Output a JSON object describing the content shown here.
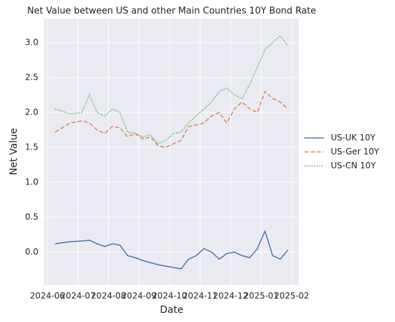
{
  "chart_data": {
    "type": "line",
    "title": "Net Value between US and other Main Countries 10Y Bond Rate",
    "xlabel": "Date",
    "ylabel": "Net Value",
    "x": [
      "2024-06",
      "2024-06",
      "2024-07",
      "2024-07",
      "2024-07",
      "2024-07",
      "2024-08",
      "2024-08",
      "2024-08",
      "2024-08",
      "2024-09",
      "2024-09",
      "2024-09",
      "2024-09",
      "2024-10",
      "2024-10",
      "2024-10",
      "2024-10",
      "2024-11",
      "2024-11",
      "2024-11",
      "2024-11",
      "2024-12",
      "2024-12",
      "2024-12",
      "2024-12",
      "2025-01",
      "2025-01",
      "2025-01",
      "2025-01"
    ],
    "series": [
      {
        "name": "US-UK 10Y",
        "color": "#4c72b0",
        "dash": "solid",
        "values": [
          0.12,
          0.15,
          0.16,
          0.17,
          0.12,
          0.08,
          0.12,
          0.1,
          -0.05,
          -0.08,
          -0.12,
          -0.15,
          -0.18,
          -0.2,
          -0.22,
          -0.24,
          -0.1,
          -0.05,
          0.05,
          0.0,
          -0.1,
          -0.02,
          0.0,
          -0.05,
          -0.08,
          0.05,
          0.3,
          -0.05,
          -0.1,
          0.03
        ]
      },
      {
        "name": "US-Ger 10Y",
        "color": "#dd8452",
        "dash": "dashed",
        "values": [
          1.72,
          1.85,
          1.88,
          1.85,
          1.75,
          1.7,
          1.8,
          1.78,
          1.65,
          1.7,
          1.62,
          1.65,
          1.52,
          1.5,
          1.55,
          1.6,
          1.8,
          1.82,
          1.85,
          1.95,
          2.0,
          1.85,
          2.05,
          2.15,
          2.05,
          2.0,
          2.3,
          2.2,
          2.15,
          2.05
        ]
      },
      {
        "name": "US-CN 10Y",
        "color": "#55a868",
        "dash": "dotted",
        "values": [
          2.05,
          1.98,
          2.0,
          2.25,
          2.0,
          1.95,
          2.05,
          2.0,
          1.72,
          1.7,
          1.65,
          1.68,
          1.55,
          1.6,
          1.7,
          1.72,
          1.85,
          1.95,
          2.05,
          2.15,
          2.3,
          2.35,
          2.25,
          2.2,
          2.4,
          2.65,
          2.9,
          3.0,
          3.1,
          2.95
        ]
      }
    ],
    "xticks": [
      "2024-06",
      "2024-07",
      "2024-08",
      "2024-09",
      "2024-10",
      "2024-11",
      "2024-12",
      "2025-01",
      "2025-02"
    ],
    "ylim": [
      -0.47,
      3.34
    ],
    "yticks": [
      {
        "value": 0,
        "label": "0.0"
      },
      0.5,
      {
        "value": 1,
        "label": "1.0"
      },
      1.5,
      {
        "value": 2,
        "label": "2.0"
      },
      2.5,
      {
        "value": 3,
        "label": "3.0"
      }
    ],
    "grid": true,
    "legend": "right"
  }
}
